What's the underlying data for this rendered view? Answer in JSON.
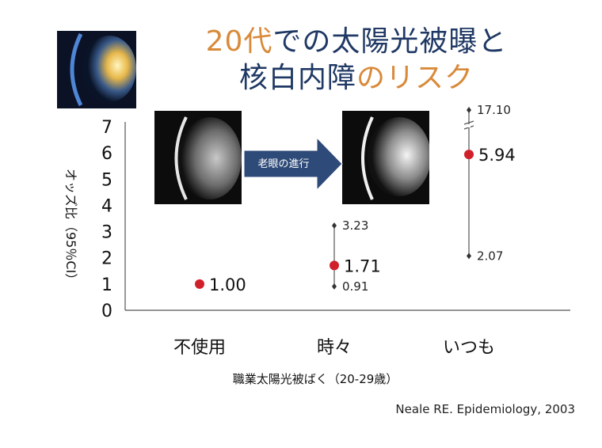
{
  "title": {
    "line1": [
      {
        "text": "20代",
        "color": "orange"
      },
      {
        "text": "での太陽光被曝と",
        "color": "navy"
      }
    ],
    "line2": [
      {
        "text": "核白内障",
        "color": "navy"
      },
      {
        "text": "の",
        "color": "orange"
      },
      {
        "text": "リスク",
        "color": "orange"
      }
    ]
  },
  "colors": {
    "orange": "#d98a3a",
    "navy": "#1f3864",
    "point": "#d0202a",
    "arrow": "#2e4a78"
  },
  "arrow_label": "老眼の進行",
  "citation": "Neale RE. Epidemiology, 2003",
  "chart_data": {
    "type": "scatter",
    "title": "",
    "xlabel": "職業太陽光被ばく（20-29歳）",
    "ylabel": "オッズ比（95％CI）",
    "ylim": [
      0,
      7
    ],
    "yticks": [
      0,
      1,
      2,
      3,
      4,
      5,
      6,
      7
    ],
    "categories": [
      "不使用",
      "時々",
      "いつも"
    ],
    "points": [
      {
        "category": "不使用",
        "value": 1.0,
        "label": "1.00"
      },
      {
        "category": "時々",
        "value": 1.71,
        "label": "1.71",
        "ci_low": 0.91,
        "ci_high": 3.23,
        "ci_low_label": "0.91",
        "ci_high_label": "3.23"
      },
      {
        "category": "いつも",
        "value": 5.94,
        "label": "5.94",
        "ci_low": 2.07,
        "ci_high": 17.1,
        "ci_low_label": "2.07",
        "ci_high_label": "17.10",
        "axis_break": true
      }
    ]
  }
}
